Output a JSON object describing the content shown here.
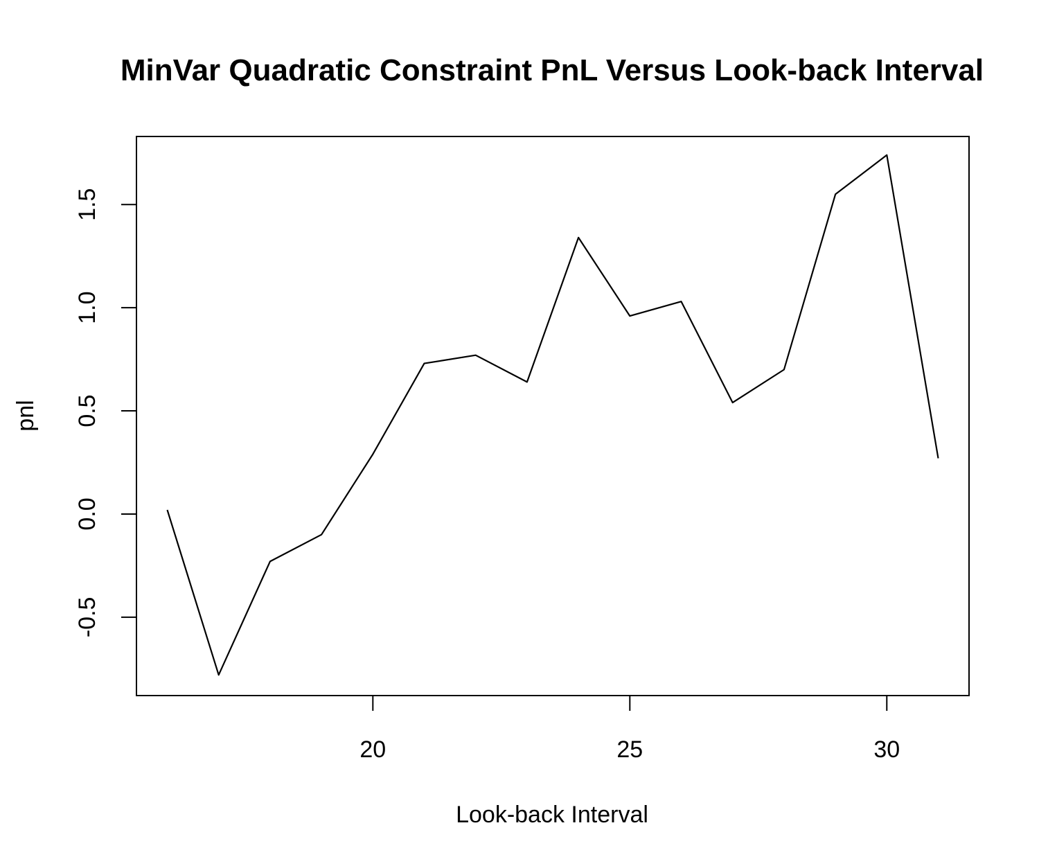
{
  "chart_data": {
    "type": "line",
    "title": "MinVar Quadratic Constraint PnL Versus Look-back Interval",
    "xlabel": "Look-back Interval",
    "ylabel": "pnl",
    "xlim": [
      15.4,
      31.6
    ],
    "ylim": [
      -0.88,
      1.83
    ],
    "x_ticks": [
      20,
      25,
      30
    ],
    "x_tick_labels": [
      "20",
      "25",
      "30"
    ],
    "y_ticks": [
      -0.5,
      0.0,
      0.5,
      1.0,
      1.5
    ],
    "y_tick_labels": [
      "-0.5",
      "0.0",
      "0.5",
      "1.0",
      "1.5"
    ],
    "grid": false,
    "line_color": "#000000",
    "series": [
      {
        "x": [
          16,
          17,
          18,
          19,
          20,
          21,
          22,
          23,
          24,
          25,
          26,
          27,
          28,
          29,
          30,
          31
        ],
        "values": [
          0.02,
          -0.78,
          -0.23,
          -0.1,
          0.29,
          0.73,
          0.77,
          0.64,
          1.34,
          0.96,
          1.03,
          0.54,
          0.7,
          1.55,
          1.74,
          0.27
        ]
      }
    ]
  }
}
